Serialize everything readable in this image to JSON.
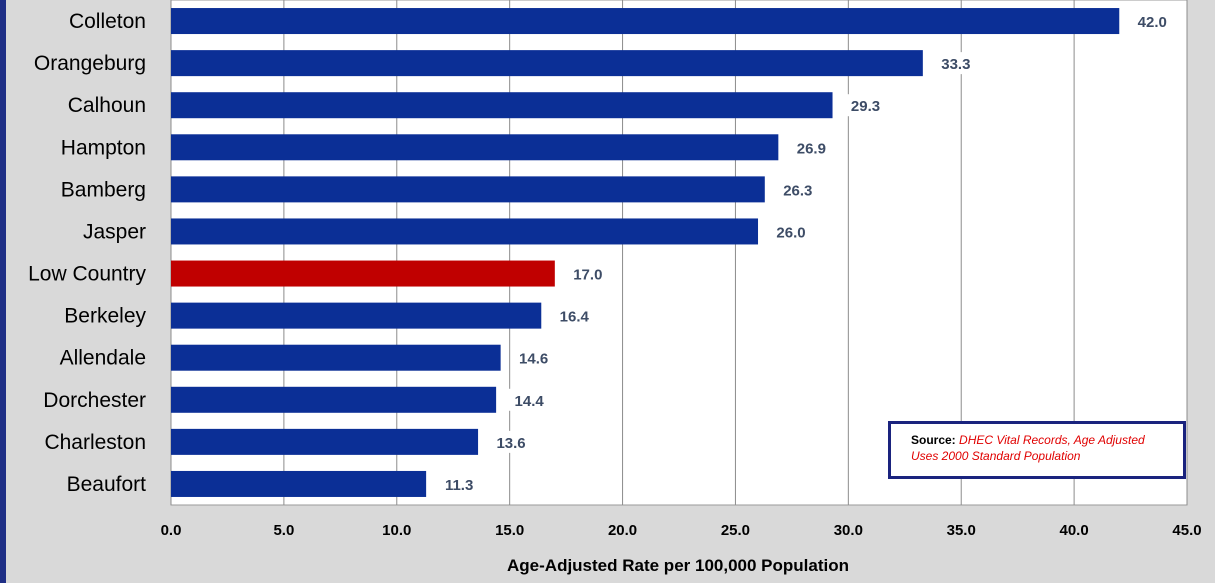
{
  "chart_data": {
    "type": "bar",
    "orientation": "horizontal",
    "categories": [
      "Colleton",
      "Orangeburg",
      "Calhoun",
      "Hampton",
      "Bamberg",
      "Jasper",
      "Low Country",
      "Berkeley",
      "Allendale",
      "Dorchester",
      "Charleston",
      "Beaufort"
    ],
    "values": [
      42.0,
      33.3,
      29.3,
      26.9,
      26.3,
      26.0,
      17.0,
      16.4,
      14.6,
      14.4,
      13.6,
      11.3
    ],
    "value_labels": [
      "42.0",
      "33.3",
      "29.3",
      "26.9",
      "26.3",
      "26.0",
      "17.0",
      "16.4",
      "14.6",
      "14.4",
      "13.6",
      "11.3"
    ],
    "bar_colors": [
      "#0b2f96",
      "#0b2f96",
      "#0b2f96",
      "#0b2f96",
      "#0b2f96",
      "#0b2f96",
      "#c00000",
      "#0b2f96",
      "#0b2f96",
      "#0b2f96",
      "#0b2f96",
      "#0b2f96"
    ],
    "highlight_category": "Low Country",
    "xlabel": "Age-Adjusted Rate per 100,000 Population",
    "xlim": [
      0,
      45
    ],
    "xticks": [
      "0.0",
      "5.0",
      "10.0",
      "15.0",
      "20.0",
      "25.0",
      "30.0",
      "35.0",
      "40.0",
      "45.0"
    ],
    "grid": "vertical",
    "legend": "none"
  },
  "source_note": {
    "label": "Source:",
    "text": " DHEC Vital Records,  Age Adjusted Uses 2000 Standard Population"
  },
  "colors": {
    "bar": "#0b2f96",
    "highlight_bar": "#c00000",
    "plot_background": "#ffffff",
    "page_background": "#d9d9d9",
    "frame_border": "#1f2f86",
    "value_label": "#3d4c66",
    "source_text": "#e00000"
  }
}
